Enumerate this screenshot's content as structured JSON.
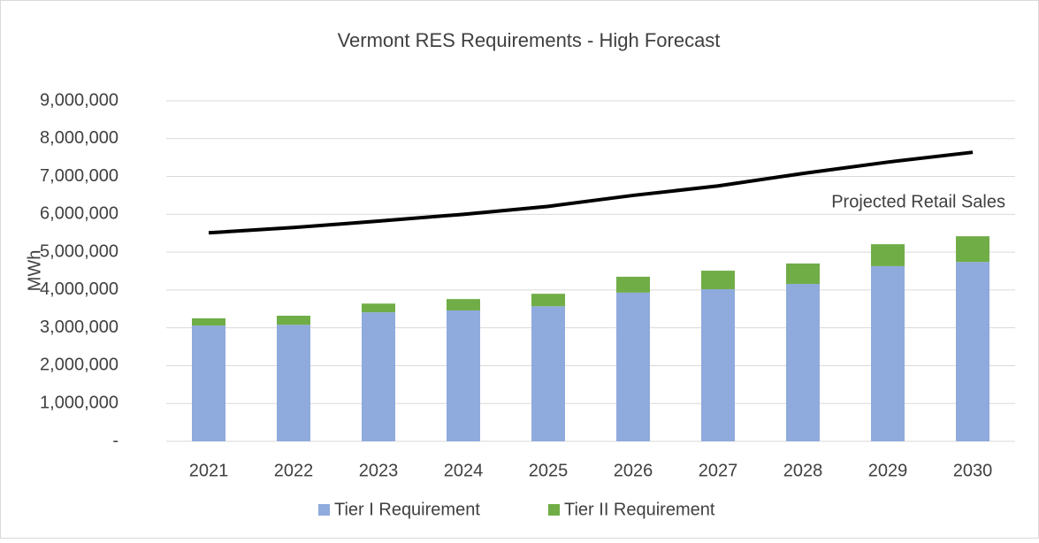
{
  "chart_data": {
    "type": "bar",
    "stacked": true,
    "title": "Vermont RES Requirements - High Forecast",
    "y_label": "MWh",
    "categories": [
      "2021",
      "2022",
      "2023",
      "2024",
      "2025",
      "2026",
      "2027",
      "2028",
      "2029",
      "2030"
    ],
    "series": [
      {
        "name": "Tier I Requirement",
        "type": "bar",
        "color": "#8faadc",
        "values": [
          3060000,
          3080000,
          3410000,
          3460000,
          3570000,
          3930000,
          4020000,
          4160000,
          4630000,
          4740000
        ]
      },
      {
        "name": "Tier II Requirement",
        "type": "bar",
        "color": "#70ad47",
        "values": [
          190000,
          240000,
          230000,
          300000,
          330000,
          420000,
          490000,
          540000,
          580000,
          680000
        ]
      },
      {
        "name": "Projected Retail Sales",
        "type": "line",
        "color": "#000000",
        "values": [
          5510000,
          5650000,
          5820000,
          6000000,
          6210000,
          6500000,
          6750000,
          7080000,
          7380000,
          7640000
        ]
      }
    ],
    "ylim": [
      0,
      9000000
    ],
    "yticks": [
      {
        "value": 0,
        "label": "-"
      },
      {
        "value": 1000000,
        "label": "1,000,000"
      },
      {
        "value": 2000000,
        "label": "2,000,000"
      },
      {
        "value": 3000000,
        "label": "3,000,000"
      },
      {
        "value": 4000000,
        "label": "4,000,000"
      },
      {
        "value": 5000000,
        "label": "5,000,000"
      },
      {
        "value": 6000000,
        "label": "6,000,000"
      },
      {
        "value": 7000000,
        "label": "7,000,000"
      },
      {
        "value": 8000000,
        "label": "8,000,000"
      },
      {
        "value": 9000000,
        "label": "9,000,000"
      }
    ],
    "grid": true,
    "legend": "bottom"
  }
}
